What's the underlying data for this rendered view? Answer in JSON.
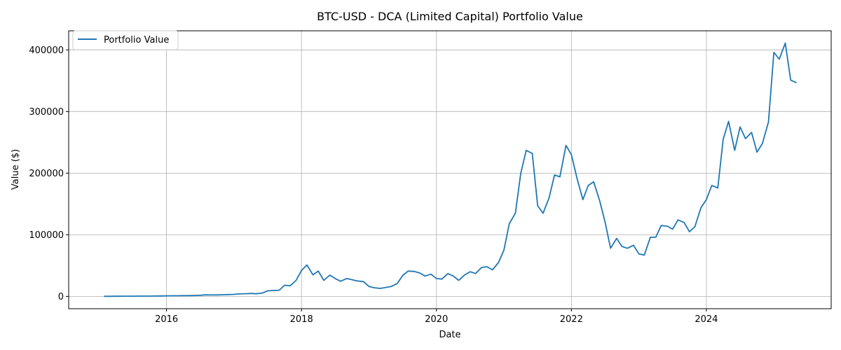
{
  "chart_data": {
    "type": "line",
    "title": "BTC-USD - DCA (Limited Capital) Portfolio Value",
    "xlabel": "Date",
    "ylabel": "Value ($)",
    "xlim": [
      2014.55,
      2025.85
    ],
    "ylim": [
      -20000,
      431000
    ],
    "x_ticks": [
      2016,
      2018,
      2020,
      2022,
      2024
    ],
    "y_ticks": [
      0,
      100000,
      200000,
      300000,
      400000
    ],
    "grid": true,
    "legend_position": "top-left",
    "color": "#1f77b4",
    "series": [
      {
        "name": "Portfolio Value",
        "x": [
          2015.08,
          2015.17,
          2015.25,
          2015.33,
          2015.42,
          2015.5,
          2015.58,
          2015.67,
          2015.75,
          2015.83,
          2015.92,
          2016.0,
          2016.08,
          2016.17,
          2016.25,
          2016.33,
          2016.42,
          2016.5,
          2016.58,
          2016.67,
          2016.75,
          2016.83,
          2016.92,
          2017.0,
          2017.08,
          2017.17,
          2017.25,
          2017.33,
          2017.42,
          2017.5,
          2017.58,
          2017.67,
          2017.75,
          2017.83,
          2017.92,
          2018.0,
          2018.08,
          2018.17,
          2018.25,
          2018.33,
          2018.42,
          2018.5,
          2018.58,
          2018.67,
          2018.75,
          2018.83,
          2018.92,
          2019.0,
          2019.08,
          2019.17,
          2019.25,
          2019.33,
          2019.42,
          2019.5,
          2019.58,
          2019.67,
          2019.75,
          2019.83,
          2019.92,
          2020.0,
          2020.08,
          2020.17,
          2020.25,
          2020.33,
          2020.42,
          2020.5,
          2020.58,
          2020.67,
          2020.75,
          2020.83,
          2020.92,
          2021.0,
          2021.08,
          2021.17,
          2021.25,
          2021.33,
          2021.42,
          2021.5,
          2021.58,
          2021.67,
          2021.75,
          2021.83,
          2021.92,
          2022.0,
          2022.08,
          2022.17,
          2022.25,
          2022.33,
          2022.42,
          2022.5,
          2022.58,
          2022.67,
          2022.75,
          2022.83,
          2022.92,
          2023.0,
          2023.08,
          2023.17,
          2023.25,
          2023.33,
          2023.42,
          2023.5,
          2023.58,
          2023.67,
          2023.75,
          2023.83,
          2023.92,
          2024.0,
          2024.08,
          2024.17,
          2024.25,
          2024.33,
          2024.42,
          2024.5,
          2024.58,
          2024.67,
          2024.75,
          2024.83,
          2024.92,
          2025.0,
          2025.08,
          2025.17,
          2025.25,
          2025.33
        ],
        "values": [
          100,
          150,
          200,
          250,
          300,
          350,
          400,
          450,
          500,
          550,
          700,
          900,
          1000,
          1000,
          1200,
          1300,
          1500,
          1800,
          2500,
          2300,
          2400,
          2600,
          3000,
          3300,
          4000,
          4300,
          4800,
          4200,
          5500,
          9000,
          9500,
          10000,
          18000,
          17000,
          26000,
          42000,
          51000,
          35000,
          41000,
          26000,
          34500,
          29000,
          24500,
          29000,
          27000,
          25000,
          24000,
          16000,
          14000,
          13000,
          14500,
          16000,
          21000,
          34000,
          41000,
          40500,
          38000,
          33000,
          36000,
          29000,
          28000,
          37000,
          33000,
          26000,
          35000,
          40000,
          37000,
          47000,
          48000,
          43000,
          55000,
          75000,
          118000,
          135000,
          200000,
          237000,
          232000,
          147000,
          135000,
          160000,
          197000,
          194000,
          245000,
          230000,
          193000,
          157000,
          180000,
          186000,
          155000,
          120000,
          78000,
          94000,
          81000,
          78000,
          83000,
          69000,
          67000,
          96000,
          96000,
          115000,
          114000,
          109000,
          124000,
          120000,
          105000,
          113000,
          144000,
          157000,
          180000,
          176000,
          255000,
          284000,
          237000,
          275000,
          256000,
          266000,
          234000,
          248000,
          283000,
          396000,
          385000,
          411000,
          351000,
          347000
        ]
      }
    ]
  }
}
